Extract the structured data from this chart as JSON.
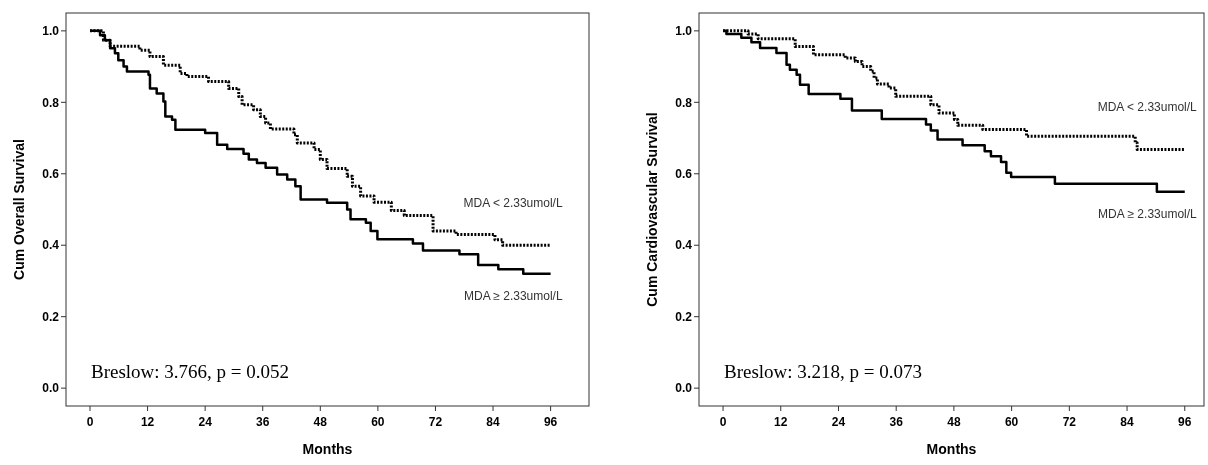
{
  "chart_data": [
    {
      "type": "step",
      "xlabel": "Months",
      "ylabel": "Cum Overall Survival",
      "xlim": [
        -5,
        104
      ],
      "ylim": [
        -0.05,
        1.05
      ],
      "xticks": [
        0,
        12,
        24,
        36,
        48,
        60,
        72,
        84,
        96
      ],
      "yticks": [
        {
          "value": 0,
          "label": "0.0"
        },
        {
          "value": 0.2,
          "label": "0.2"
        },
        {
          "value": 0.4,
          "label": "0.4"
        },
        {
          "value": 0.6,
          "label": "0.6"
        },
        {
          "value": 0.8,
          "label": "0.8"
        },
        {
          "value": 1,
          "label": "1.0"
        }
      ],
      "grid": false,
      "annotations": [
        "Breslow: 3.766, p = 0.052"
      ],
      "series": [
        {
          "name": "MDA < 2.33umol/L",
          "color": "#000000",
          "line_style": "dotted",
          "x": [
            0,
            2.8,
            4.2,
            10.4,
            12.5,
            15.3,
            18.8,
            20.2,
            24.7,
            28.9,
            31,
            31.7,
            34.1,
            35.5,
            36.6,
            37.6,
            42.5,
            43.2,
            46.7,
            48,
            49.4,
            53.6,
            54.7,
            56.4,
            59.2,
            62.8,
            65.5,
            71.5,
            76.3,
            84.4,
            86,
            96
          ],
          "values": [
            1,
            0.974,
            0.957,
            0.946,
            0.928,
            0.904,
            0.881,
            0.872,
            0.858,
            0.839,
            0.816,
            0.793,
            0.779,
            0.76,
            0.742,
            0.725,
            0.709,
            0.686,
            0.668,
            0.64,
            0.615,
            0.593,
            0.565,
            0.538,
            0.52,
            0.497,
            0.483,
            0.44,
            0.43,
            0.415,
            0.4,
            0.4
          ]
        },
        {
          "name": "MDA ≥ 2.33umol/L",
          "color": "#000000",
          "line_style": "solid",
          "x": [
            0,
            2.1,
            3.1,
            4.2,
            5.2,
            5.9,
            7,
            7.7,
            12.2,
            12.5,
            13.9,
            15.3,
            15.7,
            17.1,
            17.8,
            24,
            26.5,
            28.6,
            32,
            33.1,
            34.8,
            36.6,
            39,
            41.1,
            42.8,
            43.9,
            49.4,
            53.6,
            54.3,
            57.5,
            58.5,
            59.9,
            67.3,
            69.4,
            77,
            80.9,
            85.1,
            90.3,
            96
          ],
          "values": [
            1,
            0.988,
            0.974,
            0.951,
            0.937,
            0.918,
            0.9,
            0.886,
            0.877,
            0.839,
            0.825,
            0.802,
            0.76,
            0.751,
            0.723,
            0.714,
            0.681,
            0.669,
            0.656,
            0.64,
            0.63,
            0.617,
            0.598,
            0.584,
            0.565,
            0.528,
            0.519,
            0.5,
            0.473,
            0.463,
            0.44,
            0.417,
            0.405,
            0.385,
            0.375,
            0.345,
            0.333,
            0.32,
            0.32
          ]
        }
      ]
    },
    {
      "type": "step",
      "xlabel": "Months",
      "ylabel": "Cum Cardiovascular Survival",
      "xlim": [
        -5,
        100
      ],
      "ylim": [
        -0.05,
        1.05
      ],
      "xticks": [
        0,
        12,
        24,
        36,
        48,
        60,
        72,
        84,
        96
      ],
      "yticks": [
        {
          "value": 0,
          "label": "0.0"
        },
        {
          "value": 0.2,
          "label": "0.2"
        },
        {
          "value": 0.4,
          "label": "0.4"
        },
        {
          "value": 0.6,
          "label": "0.6"
        },
        {
          "value": 0.8,
          "label": "0.8"
        },
        {
          "value": 1,
          "label": "1.0"
        }
      ],
      "grid": false,
      "annotations": [
        "Breslow: 3.218, p = 0.073"
      ],
      "series": [
        {
          "name": "MDA < 2.33umol/L",
          "color": "#000000",
          "line_style": "dotted",
          "x": [
            0,
            5.2,
            7.3,
            15,
            18.8,
            25.4,
            27.5,
            28.9,
            30.7,
            31.4,
            32.1,
            34.5,
            35.9,
            43.2,
            44.9,
            48.1,
            48.8,
            54,
            63.1,
            85.7,
            86.1,
            96
          ],
          "values": [
            1,
            0.991,
            0.978,
            0.956,
            0.933,
            0.924,
            0.914,
            0.9,
            0.887,
            0.868,
            0.851,
            0.84,
            0.817,
            0.793,
            0.77,
            0.752,
            0.736,
            0.724,
            0.705,
            0.687,
            0.668,
            0.668
          ]
        },
        {
          "name": "MDA ≥ 2.33umol/L",
          "color": "#000000",
          "line_style": "solid",
          "x": [
            0,
            0.7,
            3.8,
            5.9,
            7.7,
            11.1,
            13.2,
            13.9,
            15.3,
            16,
            17.8,
            24.4,
            26.8,
            33,
            42.2,
            43.2,
            44.6,
            49.8,
            54.4,
            55.7,
            57.8,
            58.9,
            59.9,
            69,
            90.2,
            96
          ],
          "values": [
            1,
            0.991,
            0.981,
            0.968,
            0.952,
            0.938,
            0.905,
            0.891,
            0.877,
            0.849,
            0.823,
            0.81,
            0.777,
            0.753,
            0.738,
            0.721,
            0.696,
            0.68,
            0.663,
            0.649,
            0.633,
            0.603,
            0.591,
            0.572,
            0.55,
            0.55
          ]
        }
      ]
    }
  ]
}
